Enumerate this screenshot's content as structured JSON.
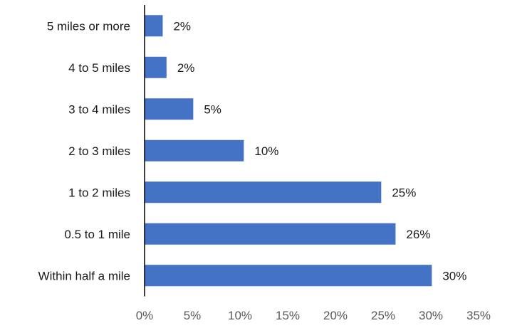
{
  "chart_data": {
    "type": "bar",
    "orientation": "horizontal",
    "categories": [
      "5 miles or more",
      "4 to 5 miles",
      "3 to 4 miles",
      "2 to 3 miles",
      "1 to 2 miles",
      "0.5 to 1 mile",
      "Within half a mile"
    ],
    "values": [
      2,
      2,
      5,
      10,
      25,
      26,
      30
    ],
    "plotted_values": [
      1.9,
      2.3,
      5.1,
      10.4,
      24.8,
      26.3,
      30.1
    ],
    "data_labels": [
      "2%",
      "2%",
      "5%",
      "10%",
      "25%",
      "26%",
      "30%"
    ],
    "x_ticks": [
      0,
      5,
      10,
      15,
      20,
      25,
      30,
      35
    ],
    "x_tick_labels": [
      "0%",
      "5%",
      "10%",
      "15%",
      "20%",
      "25%",
      "30%",
      "35%"
    ],
    "xlim": [
      0,
      35
    ],
    "title": "",
    "xlabel": "",
    "ylabel": "",
    "grid": false,
    "legend": "none",
    "bar_color": "#4472C4",
    "axis_color": "#000000"
  }
}
